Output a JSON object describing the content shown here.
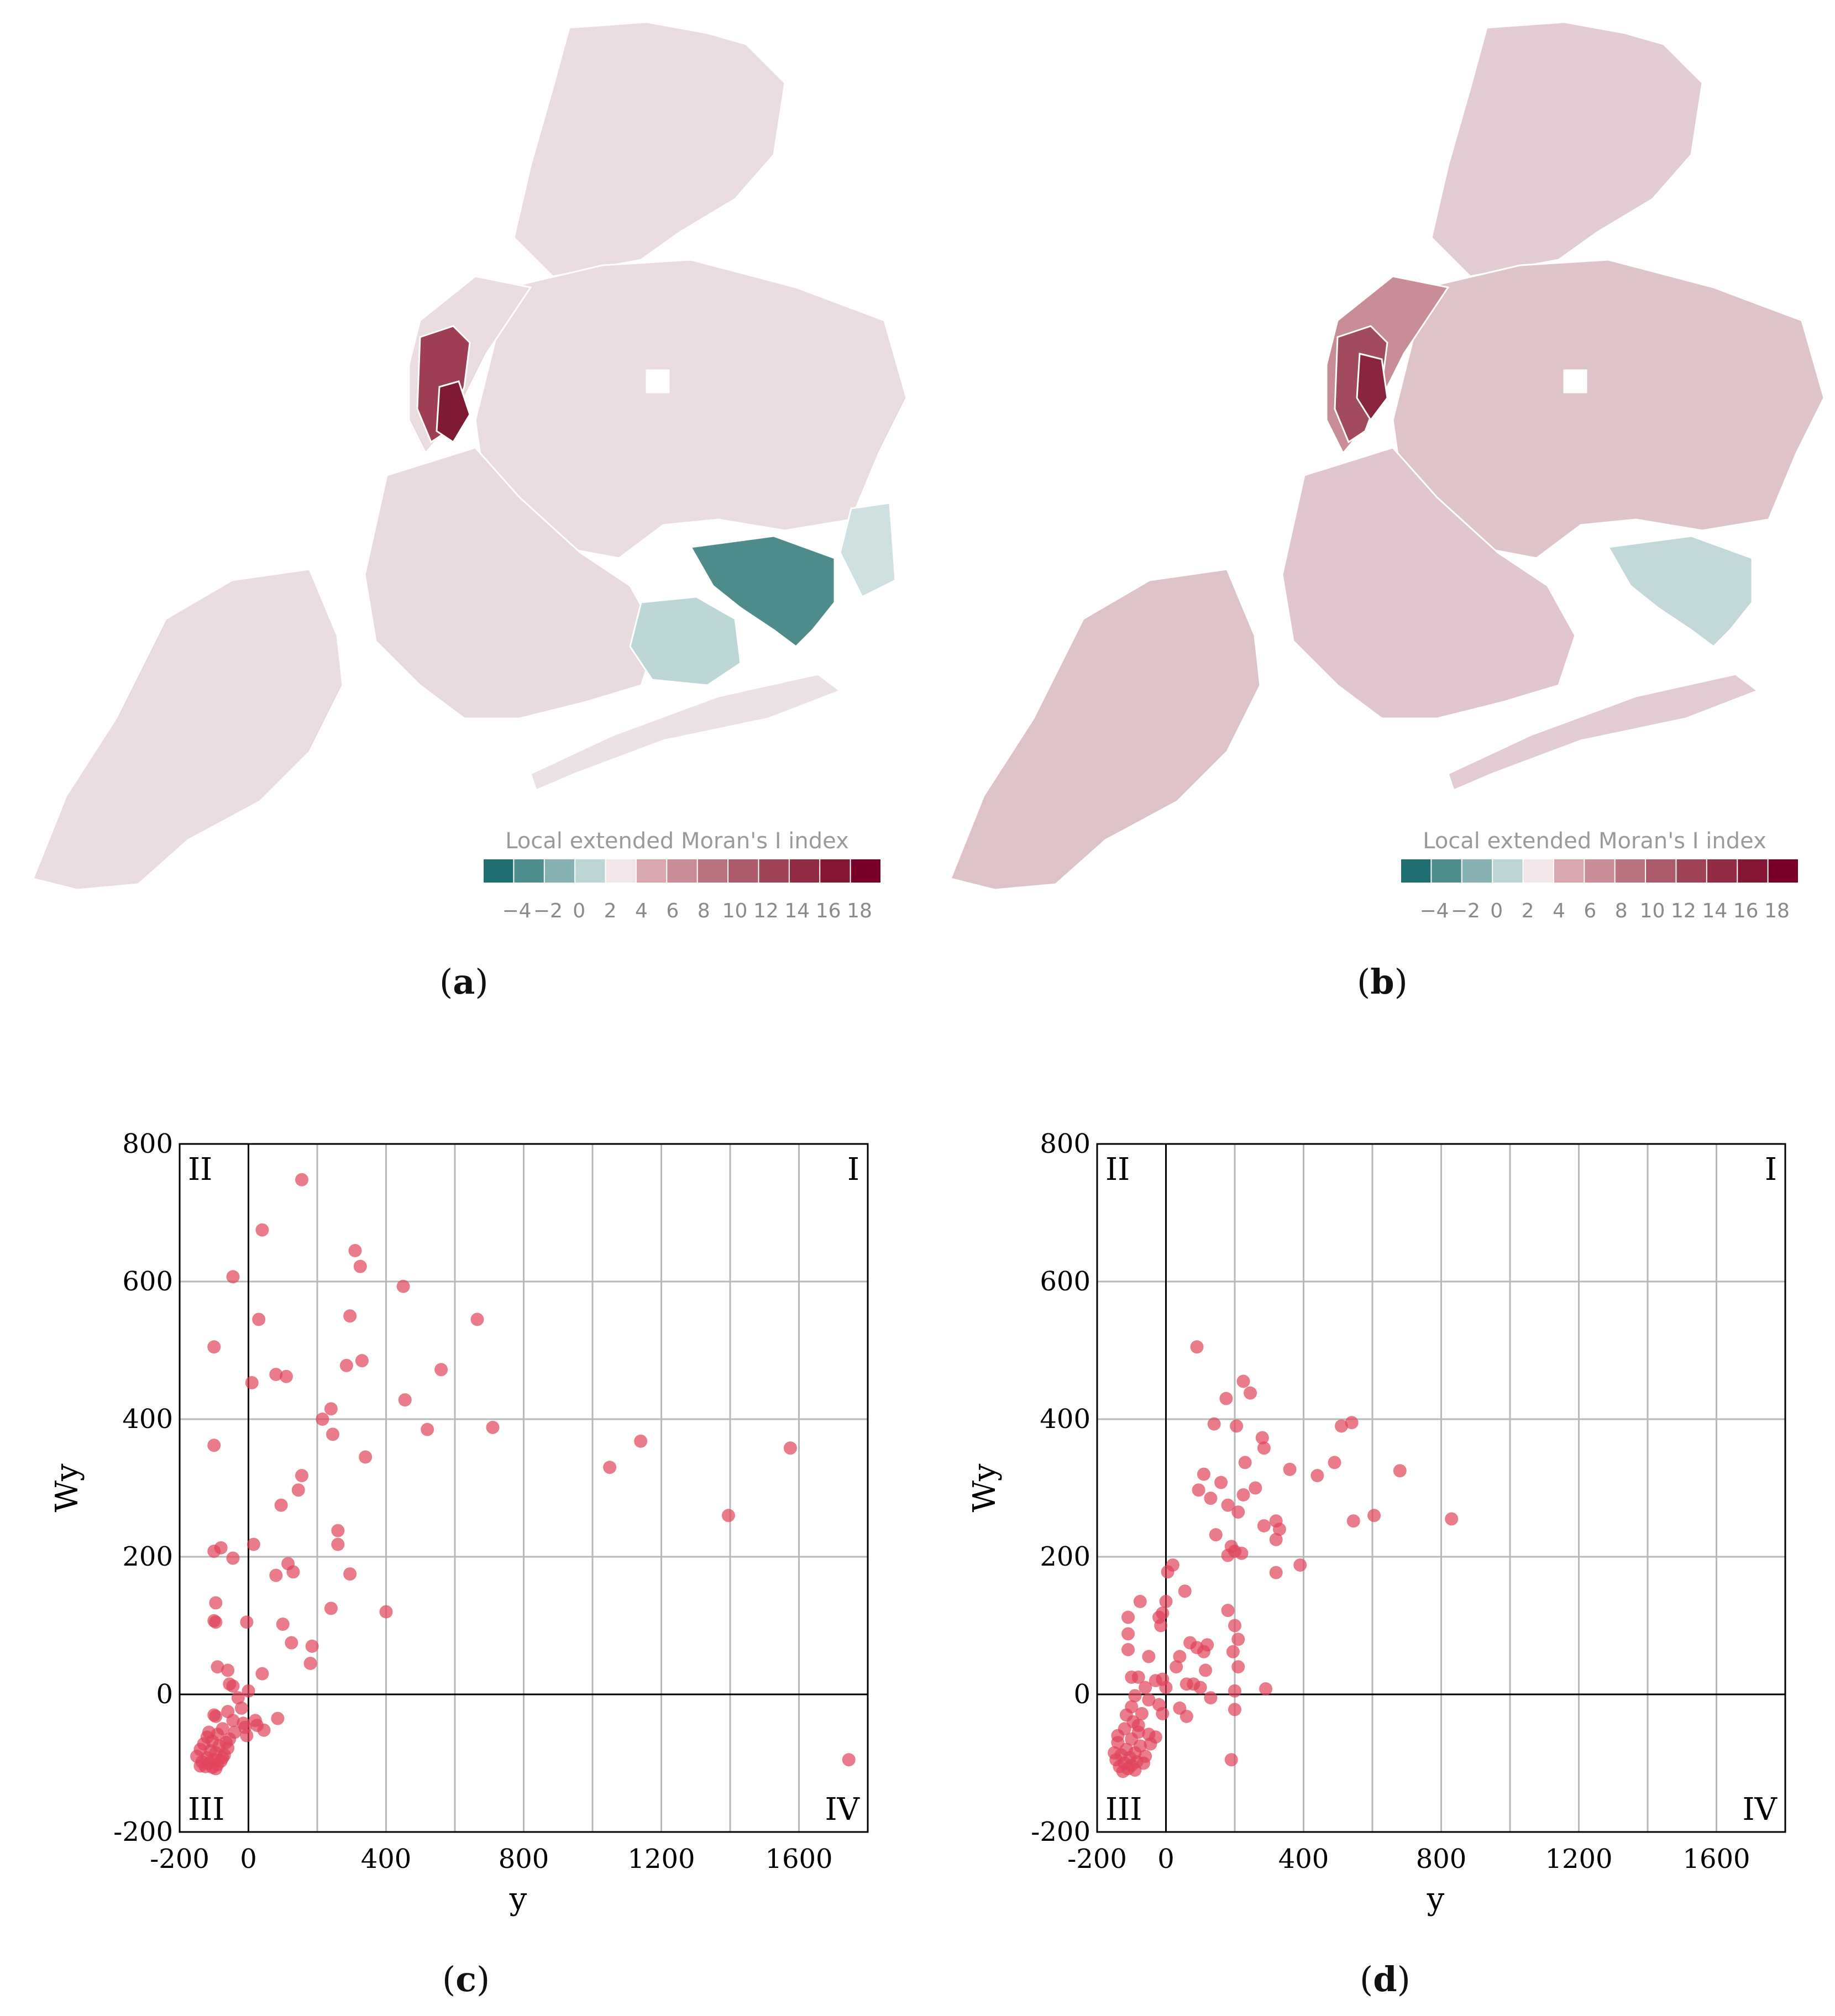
{
  "maps": [
    {
      "caption_label": "a",
      "legend_title": "Local extended Moran's I index",
      "legend_ticks": [
        "−4",
        "−2",
        "0",
        "2",
        "4",
        "6",
        "8",
        "10",
        "12",
        "14",
        "16",
        "18"
      ],
      "legend_colors": [
        "#1f6f70",
        "#4e8e8f",
        "#86b1b2",
        "#bcd5d5",
        "#f3e6e8",
        "#d8a8b0",
        "#c98d98",
        "#bb7380",
        "#ad5b6a",
        "#9f4356",
        "#922c44",
        "#851634",
        "#780026"
      ]
    },
    {
      "caption_label": "b",
      "legend_title": "Local extended Moran's I index",
      "legend_ticks": [
        "−4",
        "−2",
        "0",
        "2",
        "4",
        "6",
        "8",
        "10",
        "12",
        "14",
        "16",
        "18"
      ],
      "legend_colors": [
        "#1f6f70",
        "#4e8e8f",
        "#86b1b2",
        "#bcd5d5",
        "#f3e6e8",
        "#d8a8b0",
        "#c98d98",
        "#bb7380",
        "#ad5b6a",
        "#9f4356",
        "#922c44",
        "#851634",
        "#780026"
      ]
    }
  ],
  "chart_data": [
    {
      "type": "scatter",
      "caption_label": "c",
      "xlabel": "y",
      "ylabel": "Wy",
      "xlim": [
        -200,
        1800
      ],
      "ylim": [
        -200,
        800
      ],
      "xticks": [
        -200,
        0,
        400,
        800,
        1200,
        1600
      ],
      "xtick_labels": [
        "-200",
        "0",
        "400",
        "800",
        "1200",
        "1600"
      ],
      "yticks": [
        -200,
        0,
        200,
        400,
        600,
        800
      ],
      "ytick_labels": [
        "-200",
        "0",
        "200",
        "400",
        "600",
        "800"
      ],
      "quadrant_labels": {
        "top_left": "II",
        "top_right": "I",
        "bottom_left": "III",
        "bottom_right": "IV"
      },
      "grid": true,
      "point_color": "#e0435a",
      "points": [
        [
          155,
          748
        ],
        [
          40,
          675
        ],
        [
          -45,
          607
        ],
        [
          30,
          545
        ],
        [
          -100,
          505
        ],
        [
          310,
          645
        ],
        [
          325,
          622
        ],
        [
          450,
          593
        ],
        [
          295,
          550
        ],
        [
          665,
          545
        ],
        [
          80,
          465
        ],
        [
          110,
          462
        ],
        [
          10,
          453
        ],
        [
          330,
          485
        ],
        [
          285,
          478
        ],
        [
          560,
          472
        ],
        [
          455,
          428
        ],
        [
          240,
          415
        ],
        [
          215,
          400
        ],
        [
          245,
          378
        ],
        [
          520,
          385
        ],
        [
          710,
          388
        ],
        [
          -100,
          362
        ],
        [
          1140,
          368
        ],
        [
          1575,
          358
        ],
        [
          340,
          345
        ],
        [
          1050,
          330
        ],
        [
          155,
          318
        ],
        [
          145,
          297
        ],
        [
          95,
          275
        ],
        [
          1395,
          260
        ],
        [
          260,
          238
        ],
        [
          260,
          218
        ],
        [
          15,
          218
        ],
        [
          -80,
          213
        ],
        [
          -100,
          208
        ],
        [
          -45,
          198
        ],
        [
          115,
          190
        ],
        [
          130,
          178
        ],
        [
          80,
          173
        ],
        [
          295,
          175
        ],
        [
          -95,
          133
        ],
        [
          240,
          125
        ],
        [
          400,
          120
        ],
        [
          -100,
          107
        ],
        [
          -95,
          105
        ],
        [
          -5,
          105
        ],
        [
          100,
          102
        ],
        [
          125,
          75
        ],
        [
          185,
          70
        ],
        [
          -90,
          40
        ],
        [
          -60,
          35
        ],
        [
          180,
          45
        ],
        [
          40,
          30
        ],
        [
          -55,
          15
        ],
        [
          -45,
          12
        ],
        [
          -30,
          -5
        ],
        [
          0,
          5
        ],
        [
          -20,
          -20
        ],
        [
          -60,
          -25
        ],
        [
          -100,
          -30
        ],
        [
          -95,
          -32
        ],
        [
          -45,
          -38
        ],
        [
          -15,
          -42
        ],
        [
          20,
          -38
        ],
        [
          85,
          -35
        ],
        [
          25,
          -45
        ],
        [
          -10,
          -48
        ],
        [
          -75,
          -50
        ],
        [
          -40,
          -55
        ],
        [
          -90,
          -58
        ],
        [
          -120,
          -62
        ],
        [
          45,
          -52
        ],
        [
          -5,
          -60
        ],
        [
          -55,
          -65
        ],
        [
          -105,
          -68
        ],
        [
          -130,
          -72
        ],
        [
          -85,
          -75
        ],
        [
          -60,
          -78
        ],
        [
          -140,
          -80
        ],
        [
          -110,
          -82
        ],
        [
          -95,
          -85
        ],
        [
          -70,
          -88
        ],
        [
          -150,
          -90
        ],
        [
          -120,
          -92
        ],
        [
          -100,
          -95
        ],
        [
          -80,
          -97
        ],
        [
          -135,
          -98
        ],
        [
          -115,
          -100
        ],
        [
          -90,
          -102
        ],
        [
          -125,
          -105
        ],
        [
          -105,
          -106
        ],
        [
          -140,
          -104
        ],
        [
          -95,
          -108
        ],
        [
          -75,
          -92
        ],
        [
          -65,
          -70
        ],
        [
          -115,
          -55
        ],
        [
          1745,
          -95
        ]
      ]
    },
    {
      "type": "scatter",
      "caption_label": "d",
      "xlabel": "y",
      "ylabel": "Wy",
      "xlim": [
        -200,
        1800
      ],
      "ylim": [
        -200,
        800
      ],
      "xticks": [
        -200,
        0,
        400,
        800,
        1200,
        1600
      ],
      "xtick_labels": [
        "-200",
        "0",
        "400",
        "800",
        "1200",
        "1600"
      ],
      "yticks": [
        -200,
        0,
        200,
        400,
        600,
        800
      ],
      "ytick_labels": [
        "-200",
        "0",
        "200",
        "400",
        "600",
        "800"
      ],
      "quadrant_labels": {
        "top_left": "II",
        "top_right": "I",
        "bottom_left": "III",
        "bottom_right": "IV"
      },
      "grid": true,
      "point_color": "#e0435a",
      "points": [
        [
          90,
          505
        ],
        [
          225,
          455
        ],
        [
          245,
          438
        ],
        [
          175,
          430
        ],
        [
          140,
          393
        ],
        [
          205,
          390
        ],
        [
          540,
          395
        ],
        [
          510,
          390
        ],
        [
          280,
          373
        ],
        [
          285,
          358
        ],
        [
          230,
          337
        ],
        [
          360,
          327
        ],
        [
          680,
          325
        ],
        [
          110,
          320
        ],
        [
          490,
          337
        ],
        [
          440,
          318
        ],
        [
          160,
          308
        ],
        [
          260,
          300
        ],
        [
          95,
          297
        ],
        [
          225,
          290
        ],
        [
          130,
          285
        ],
        [
          180,
          275
        ],
        [
          210,
          265
        ],
        [
          320,
          252
        ],
        [
          605,
          260
        ],
        [
          545,
          252
        ],
        [
          830,
          255
        ],
        [
          285,
          245
        ],
        [
          330,
          240
        ],
        [
          145,
          232
        ],
        [
          320,
          225
        ],
        [
          190,
          215
        ],
        [
          200,
          208
        ],
        [
          220,
          205
        ],
        [
          180,
          202
        ],
        [
          390,
          188
        ],
        [
          20,
          188
        ],
        [
          320,
          177
        ],
        [
          5,
          178
        ],
        [
          180,
          122
        ],
        [
          0,
          135
        ],
        [
          -10,
          118
        ],
        [
          -20,
          112
        ],
        [
          -110,
          112
        ],
        [
          -75,
          135
        ],
        [
          -15,
          100
        ],
        [
          -110,
          88
        ],
        [
          55,
          150
        ],
        [
          70,
          75
        ],
        [
          90,
          68
        ],
        [
          110,
          62
        ],
        [
          120,
          72
        ],
        [
          200,
          100
        ],
        [
          210,
          80
        ],
        [
          195,
          62
        ],
        [
          40,
          55
        ],
        [
          -50,
          55
        ],
        [
          30,
          40
        ],
        [
          -110,
          65
        ],
        [
          115,
          35
        ],
        [
          -100,
          25
        ],
        [
          -80,
          25
        ],
        [
          210,
          40
        ],
        [
          -30,
          20
        ],
        [
          -10,
          22
        ],
        [
          80,
          15
        ],
        [
          60,
          15
        ],
        [
          0,
          10
        ],
        [
          -60,
          10
        ],
        [
          290,
          8
        ],
        [
          200,
          5
        ],
        [
          100,
          10
        ],
        [
          130,
          -5
        ],
        [
          -90,
          -2
        ],
        [
          -50,
          -8
        ],
        [
          -20,
          -15
        ],
        [
          40,
          -20
        ],
        [
          -100,
          -18
        ],
        [
          -70,
          -28
        ],
        [
          -10,
          -28
        ],
        [
          200,
          -22
        ],
        [
          60,
          -32
        ],
        [
          -80,
          -45
        ],
        [
          -120,
          -50
        ],
        [
          -50,
          -58
        ],
        [
          -30,
          -62
        ],
        [
          -100,
          -65
        ],
        [
          -140,
          -70
        ],
        [
          -75,
          -75
        ],
        [
          -115,
          -80
        ],
        [
          -90,
          -85
        ],
        [
          -130,
          -88
        ],
        [
          -60,
          -90
        ],
        [
          -105,
          -92
        ],
        [
          -145,
          -95
        ],
        [
          -85,
          -98
        ],
        [
          190,
          -95
        ],
        [
          -120,
          -100
        ],
        [
          -100,
          -103
        ],
        [
          -135,
          -105
        ],
        [
          -110,
          -108
        ],
        [
          -90,
          -110
        ],
        [
          -125,
          -112
        ],
        [
          -80,
          -55
        ],
        [
          -95,
          -40
        ],
        [
          -115,
          -30
        ],
        [
          -140,
          -60
        ],
        [
          -65,
          -100
        ],
        [
          -150,
          -85
        ],
        [
          -45,
          -72
        ]
      ]
    }
  ]
}
